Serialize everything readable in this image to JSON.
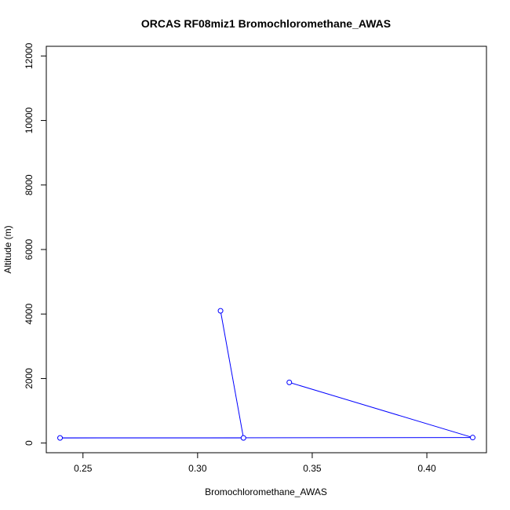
{
  "chart_data": {
    "type": "line",
    "title": "ORCAS RF08miz1 Bromochloromethane_AWAS",
    "xlabel": "Bromochloromethane_AWAS",
    "ylabel": "Altitude (m)",
    "xlim": [
      0.234,
      0.426
    ],
    "ylim": [
      -300,
      12300
    ],
    "xticks": [
      0.25,
      0.3,
      0.35,
      0.4
    ],
    "xtick_labels": [
      "0.25",
      "0.30",
      "0.35",
      "0.40"
    ],
    "yticks": [
      0,
      2000,
      4000,
      6000,
      8000,
      10000,
      12000
    ],
    "ytick_labels": [
      "0",
      "2000",
      "4000",
      "6000",
      "8000",
      "10000",
      "12000"
    ],
    "grid": false,
    "series": [
      {
        "color": "#0000ff",
        "points": [
          {
            "x": 0.31,
            "y": 4100
          },
          {
            "x": 0.32,
            "y": 160
          },
          {
            "x": 0.24,
            "y": 160
          },
          {
            "x": 0.42,
            "y": 170
          },
          {
            "x": 0.34,
            "y": 1880
          }
        ]
      }
    ]
  }
}
